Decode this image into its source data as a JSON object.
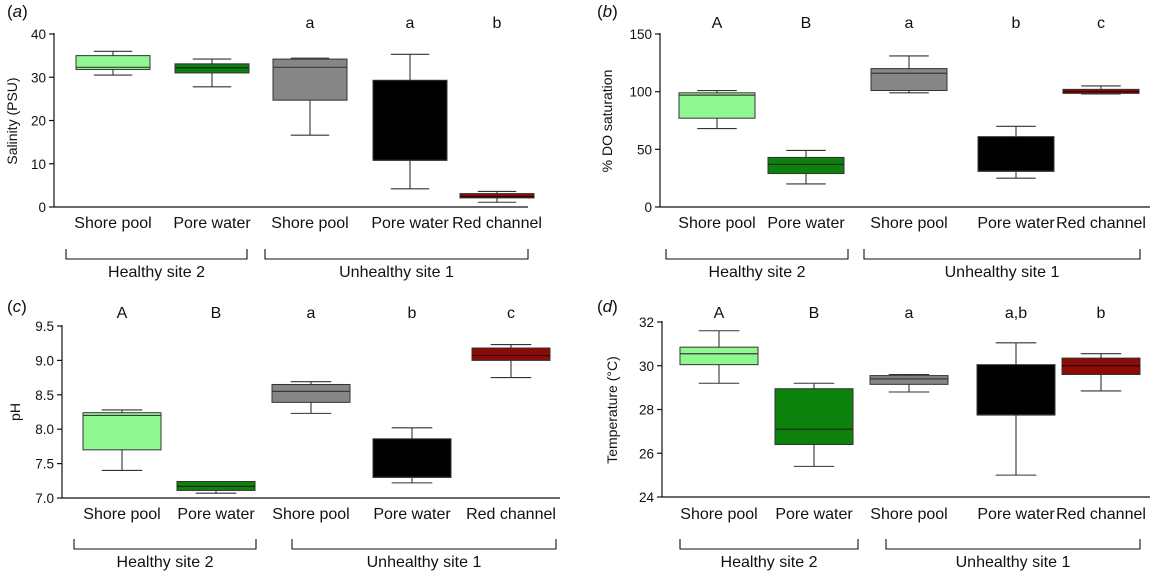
{
  "figure": {
    "group_labels": {
      "healthy": "Healthy site 2",
      "unhealthy": "Unhealthy site 1"
    },
    "colors": {
      "healthy_shore": "#90f890",
      "healthy_pore": "#0c820c",
      "unhealthy_shore": "#868686",
      "unhealthy_pore": "#000000",
      "unhealthy_red": "#8c0b06",
      "axis": "#111111",
      "box_stroke": "#333333"
    }
  },
  "chart_data": [
    {
      "type": "box",
      "panel_label": "(a)",
      "ylabel": "Salinity (PSU)",
      "ylim": [
        0,
        40
      ],
      "yticks": [
        0,
        10,
        20,
        30,
        40
      ],
      "ytick_labels": [
        "0",
        "10",
        "20",
        "30",
        "40"
      ],
      "categories": [
        "Shore pool",
        "Pore water",
        "Shore pool",
        "Pore water",
        "Red channel"
      ],
      "groups": [
        "Healthy site 2",
        "Healthy site 2",
        "Unhealthy site 1",
        "Unhealthy site 1",
        "Unhealthy site 1"
      ],
      "significance": [
        "",
        "",
        "a",
        "a",
        "b"
      ],
      "series": [
        {
          "name": "Healthy site 2 · Shore pool",
          "min": 30.5,
          "q1": 31.8,
          "median": 32.3,
          "q3": 35.0,
          "max": 36.0
        },
        {
          "name": "Healthy site 2 · Pore water",
          "min": 27.8,
          "q1": 31.0,
          "median": 32.2,
          "q3": 33.1,
          "max": 34.2
        },
        {
          "name": "Unhealthy site 1 · Shore pool",
          "min": 16.6,
          "q1": 24.7,
          "median": 32.3,
          "q3": 34.2,
          "max": 34.4
        },
        {
          "name": "Unhealthy site 1 · Pore water",
          "min": 4.2,
          "q1": 10.8,
          "median": 10.8,
          "q3": 29.3,
          "max": 35.3
        },
        {
          "name": "Unhealthy site 1 · Red channel",
          "min": 1.1,
          "q1": 2.1,
          "median": 2.4,
          "q3": 3.1,
          "max": 3.6
        }
      ]
    },
    {
      "type": "box",
      "panel_label": "(b)",
      "ylabel": "% DO saturation",
      "ylim": [
        0,
        150
      ],
      "yticks": [
        0,
        50,
        100,
        150
      ],
      "ytick_labels": [
        "0",
        "50",
        "100",
        "150"
      ],
      "categories": [
        "Shore pool",
        "Pore water",
        "Shore pool",
        "Pore water",
        "Red channel"
      ],
      "groups": [
        "Healthy site 2",
        "Healthy site 2",
        "Unhealthy site 1",
        "Unhealthy site 1",
        "Unhealthy site 1"
      ],
      "significance": [
        "A",
        "B",
        "a",
        "b",
        "c"
      ],
      "series": [
        {
          "name": "Healthy site 2 · Shore pool",
          "min": 68,
          "q1": 77,
          "median": 97,
          "q3": 99,
          "max": 101
        },
        {
          "name": "Healthy site 2 · Pore water",
          "min": 20,
          "q1": 29,
          "median": 37,
          "q3": 43,
          "max": 49
        },
        {
          "name": "Unhealthy site 1 · Shore pool",
          "min": 99,
          "q1": 101,
          "median": 116,
          "q3": 120,
          "max": 131
        },
        {
          "name": "Unhealthy site 1 · Pore water",
          "min": 25,
          "q1": 31,
          "median": 31,
          "q3": 61,
          "max": 70
        },
        {
          "name": "Unhealthy site 1 · Red channel",
          "min": 98,
          "q1": 98.5,
          "median": 100,
          "q3": 102,
          "max": 105
        }
      ]
    },
    {
      "type": "box",
      "panel_label": "(c)",
      "ylabel": "pH",
      "ylim": [
        7.0,
        9.5
      ],
      "yticks": [
        7.0,
        7.5,
        8.0,
        8.5,
        9.0,
        9.5
      ],
      "ytick_labels": [
        "7.0",
        "7.5",
        "8.0",
        "8.5",
        "9.0",
        "9.5"
      ],
      "categories": [
        "Shore pool",
        "Pore water",
        "Shore pool",
        "Pore water",
        "Red channel"
      ],
      "groups": [
        "Healthy site 2",
        "Healthy site 2",
        "Unhealthy site 1",
        "Unhealthy site 1",
        "Unhealthy site 1"
      ],
      "significance": [
        "A",
        "B",
        "a",
        "b",
        "c"
      ],
      "series": [
        {
          "name": "Healthy site 2 · Shore pool",
          "min": 7.4,
          "q1": 7.7,
          "median": 8.2,
          "q3": 8.24,
          "max": 8.28
        },
        {
          "name": "Healthy site 2 · Pore water",
          "min": 7.07,
          "q1": 7.11,
          "median": 7.17,
          "q3": 7.24,
          "max": 7.24
        },
        {
          "name": "Unhealthy site 1 · Shore pool",
          "min": 8.23,
          "q1": 8.39,
          "median": 8.55,
          "q3": 8.65,
          "max": 8.69
        },
        {
          "name": "Unhealthy site 1 · Pore water",
          "min": 7.22,
          "q1": 7.3,
          "median": 7.3,
          "q3": 7.86,
          "max": 8.02
        },
        {
          "name": "Unhealthy site 1 · Red channel",
          "min": 8.75,
          "q1": 9.0,
          "median": 9.07,
          "q3": 9.18,
          "max": 9.23
        }
      ]
    },
    {
      "type": "box",
      "panel_label": "(d)",
      "ylabel": "Temperature (°C)",
      "ylim": [
        24,
        32
      ],
      "yticks": [
        24,
        26,
        28,
        30,
        32
      ],
      "ytick_labels": [
        "24",
        "26",
        "28",
        "30",
        "32"
      ],
      "categories": [
        "Shore pool",
        "Pore water",
        "Shore pool",
        "Pore water",
        "Red channel"
      ],
      "groups": [
        "Healthy site 2",
        "Healthy site 2",
        "Unhealthy site 1",
        "Unhealthy site 1",
        "Unhealthy site 1"
      ],
      "significance": [
        "A",
        "B",
        "a",
        "a,b",
        "b"
      ],
      "series": [
        {
          "name": "Healthy site 2 · Shore pool",
          "min": 29.2,
          "q1": 30.05,
          "median": 30.55,
          "q3": 30.85,
          "max": 31.6
        },
        {
          "name": "Healthy site 2 · Pore water",
          "min": 25.4,
          "q1": 26.4,
          "median": 27.1,
          "q3": 28.95,
          "max": 29.2
        },
        {
          "name": "Unhealthy site 1 · Shore pool",
          "min": 28.8,
          "q1": 29.15,
          "median": 29.4,
          "q3": 29.55,
          "max": 29.6
        },
        {
          "name": "Unhealthy site 1 · Pore water",
          "min": 25.0,
          "q1": 27.75,
          "median": 27.75,
          "q3": 30.05,
          "max": 31.05
        },
        {
          "name": "Unhealthy site 1 · Red channel",
          "min": 28.85,
          "q1": 29.6,
          "median": 30.0,
          "q3": 30.35,
          "max": 30.55
        }
      ]
    }
  ]
}
